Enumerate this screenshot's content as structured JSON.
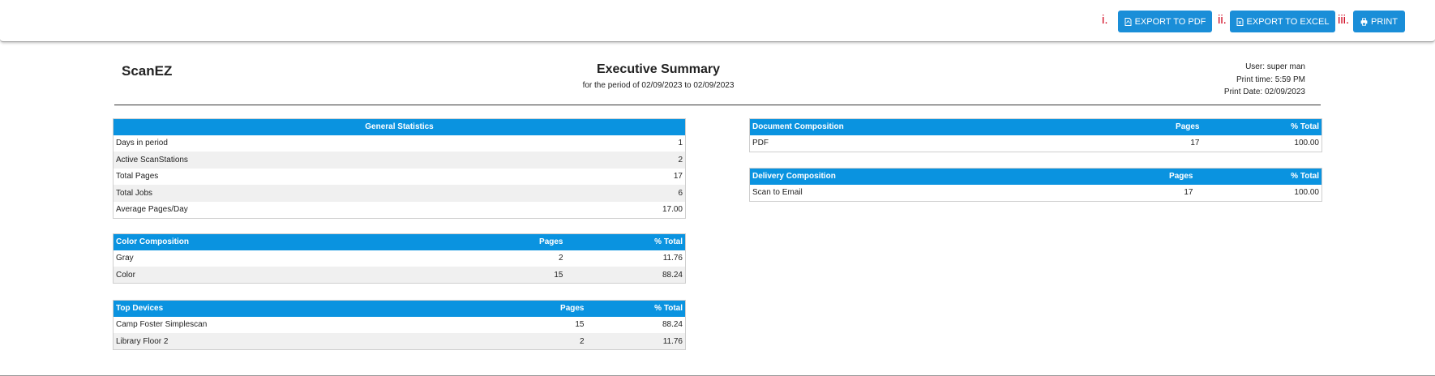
{
  "toolbar": {
    "markers": [
      "i.",
      "ii.",
      "iii."
    ],
    "export_pdf_label": "EXPORT TO PDF",
    "export_excel_label": "EXPORT TO EXCEL",
    "print_label": "PRINT",
    "accent_color": "#1a8ed8",
    "marker_color": "#d0021b"
  },
  "header": {
    "brand": "ScanEZ",
    "title": "Executive Summary",
    "subtitle": "for the period of 02/09/2023 to 02/09/2023",
    "user": "User: super man",
    "print_time": "Print time: 5:59 PM",
    "print_date": "Print Date: 02/09/2023"
  },
  "general_stats": {
    "header": "General Statistics",
    "rows": [
      {
        "label": "Days in period",
        "value": "1"
      },
      {
        "label": "Active ScanStations",
        "value": "2"
      },
      {
        "label": "Total Pages",
        "value": "17"
      },
      {
        "label": "Total Jobs",
        "value": "6"
      },
      {
        "label": "Average Pages/Day",
        "value": "17.00"
      }
    ]
  },
  "color_composition": {
    "headers": [
      "Color Composition",
      "Pages",
      "% Total"
    ],
    "rows": [
      {
        "name": "Gray",
        "pages": "2",
        "pct": "11.76"
      },
      {
        "name": "Color",
        "pages": "15",
        "pct": "88.24"
      }
    ]
  },
  "top_devices": {
    "headers": [
      "Top Devices",
      "Pages",
      "% Total"
    ],
    "rows": [
      {
        "name": "Camp Foster Simplescan",
        "pages": "15",
        "pct": "88.24"
      },
      {
        "name": "Library Floor 2",
        "pages": "2",
        "pct": "11.76"
      }
    ]
  },
  "document_composition": {
    "headers": [
      "Document Composition",
      "Pages",
      "% Total"
    ],
    "rows": [
      {
        "name": "PDF",
        "pages": "17",
        "pct": "100.00"
      }
    ]
  },
  "delivery_composition": {
    "headers": [
      "Delivery Composition",
      "Pages",
      "% Total"
    ],
    "rows": [
      {
        "name": "Scan to Email",
        "pages": "17",
        "pct": "100.00"
      }
    ]
  },
  "colors": {
    "table_header_bg": "#0a93e0",
    "alt_row_bg": "#f0f0f0"
  }
}
